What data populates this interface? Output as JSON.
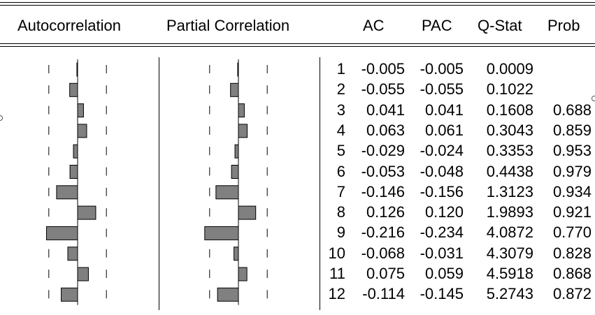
{
  "headers": {
    "autocorrelation": "Autocorrelation",
    "partial_correlation": "Partial Correlation",
    "ac": "AC",
    "pac": "PAC",
    "qstat": "Q-Stat",
    "prob": "Prob"
  },
  "chart_data": {
    "type": "table",
    "columns": [
      "",
      "AC",
      "PAC",
      "Q-Stat",
      "Prob"
    ],
    "rows": [
      {
        "lag": "1",
        "ac": "-0.005",
        "pac": "-0.005",
        "q": "0.0009",
        "prob": ""
      },
      {
        "lag": "2",
        "ac": "-0.055",
        "pac": "-0.055",
        "q": "0.1022",
        "prob": ""
      },
      {
        "lag": "3",
        "ac": "0.041",
        "pac": "0.041",
        "q": "0.1608",
        "prob": "0.688"
      },
      {
        "lag": "4",
        "ac": "0.063",
        "pac": "0.061",
        "q": "0.3043",
        "prob": "0.859"
      },
      {
        "lag": "5",
        "ac": "-0.029",
        "pac": "-0.024",
        "q": "0.3353",
        "prob": "0.953"
      },
      {
        "lag": "6",
        "ac": "-0.053",
        "pac": "-0.048",
        "q": "0.4438",
        "prob": "0.979"
      },
      {
        "lag": "7",
        "ac": "-0.146",
        "pac": "-0.156",
        "q": "1.3123",
        "prob": "0.934"
      },
      {
        "lag": "8",
        "ac": "0.126",
        "pac": "0.120",
        "q": "1.9893",
        "prob": "0.921"
      },
      {
        "lag": "9",
        "ac": "-0.216",
        "pac": "-0.234",
        "q": "4.0872",
        "prob": "0.770"
      },
      {
        "lag": "10",
        "ac": "-0.068",
        "pac": "-0.031",
        "q": "4.3079",
        "prob": "0.828"
      },
      {
        "lag": "11",
        "ac": "0.075",
        "pac": "0.059",
        "q": "4.5918",
        "prob": "0.868"
      },
      {
        "lag": "12",
        "ac": "-0.114",
        "pac": "-0.145",
        "q": "5.2743",
        "prob": "0.872"
      }
    ],
    "correlogram": {
      "scale": [
        -0.5,
        0.5
      ],
      "confidence_bound": 0.2,
      "bar_color": "#808080",
      "bar_edge": "#000000"
    }
  }
}
